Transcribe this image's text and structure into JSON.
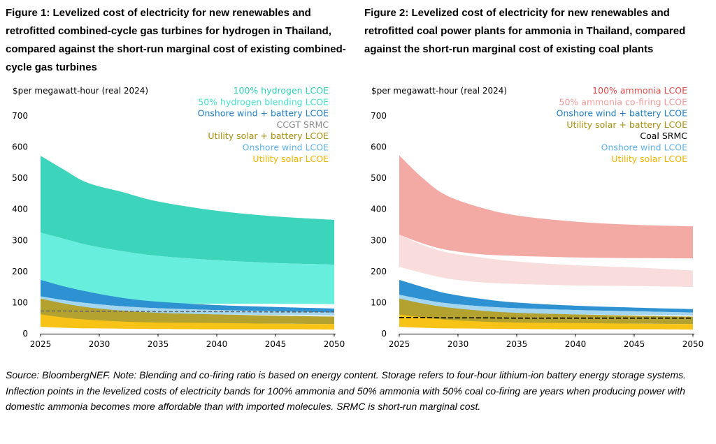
{
  "figure1": {
    "title": "Figure 1:  Levelized cost of electricity for new renewables and retrofitted combined-cycle gas turbines for hydrogen in Thailand, compared against the short-run marginal cost of existing combined-cycle gas turbines"
  },
  "figure2": {
    "title": "Figure 2:  Levelized cost of electricity for new renewables and retrofitted coal power plants for ammonia in Thailand, compared against the short-run marginal cost of existing coal plants"
  },
  "source_note": "Source: BloombergNEF. Note: Blending and co-firing ratio is based on energy content. Storage refers to four-hour lithium-ion battery energy storage systems. Inflection points in the levelized costs of electricity bands for 100% ammonia and 50% ammonia with 50% coal co-firing are years when producing power with domestic ammonia becomes more affordable than with imported molecules. SRMC is short-run marginal cost.",
  "chart_data": [
    {
      "type": "area",
      "ylabel": "$per megawatt-hour (real 2024)",
      "ylim": [
        0,
        700
      ],
      "xlim": [
        2025,
        2050
      ],
      "yticks": [
        0,
        100,
        200,
        300,
        400,
        500,
        600,
        700
      ],
      "xticks": [
        2025,
        2030,
        2035,
        2040,
        2045,
        2050
      ],
      "grid": false,
      "legend_position": "top-right",
      "x": [
        2025,
        2027,
        2029,
        2032,
        2035,
        2040,
        2045,
        2050
      ],
      "bands": [
        {
          "name": "100% hydrogen LCOE",
          "color": "#3dd4bc",
          "opacity": 1,
          "low": [
            325,
            305,
            285,
            265,
            250,
            236,
            227,
            222
          ],
          "high": [
            572,
            527,
            485,
            455,
            425,
            395,
            377,
            366
          ]
        },
        {
          "name": "50% hydrogen blending LCOE",
          "color": "#67eedd",
          "opacity": 1,
          "low": [
            110,
            105,
            100,
            98,
            97,
            96,
            96,
            95
          ],
          "high": [
            325,
            305,
            285,
            265,
            250,
            236,
            227,
            222
          ]
        },
        {
          "name": "Onshore wind + battery LCOE",
          "color": "#2e92d2",
          "opacity": 1,
          "low": [
            120,
            108,
            98,
            88,
            82,
            76,
            72,
            68
          ],
          "high": [
            173,
            152,
            135,
            115,
            103,
            92,
            86,
            81
          ]
        },
        {
          "name": "Onshore wind LCOE",
          "color": "#a4d6f0",
          "opacity": 1,
          "low": [
            88,
            80,
            74,
            68,
            65,
            62,
            60,
            58
          ],
          "high": [
            120,
            108,
            98,
            88,
            82,
            76,
            72,
            68
          ]
        },
        {
          "name": "Utility solar + battery LCOE",
          "color": "#b3a230",
          "opacity": 1,
          "low": [
            45,
            40,
            37,
            35,
            34,
            33,
            32,
            31
          ],
          "high": [
            113,
            97,
            85,
            74,
            67,
            62,
            58,
            55
          ]
        },
        {
          "name": "Utility solar LCOE",
          "color": "#f6c316",
          "opacity": 1,
          "low": [
            22,
            19,
            17,
            16,
            15,
            14,
            14,
            13
          ],
          "high": [
            62,
            52,
            45,
            39,
            36,
            34,
            32,
            31
          ]
        }
      ],
      "lines": [
        {
          "name": "CCGT SRMC",
          "color": "#666666",
          "dash": "5,3",
          "values": [
            73,
            73,
            72,
            72,
            71,
            71,
            70,
            70
          ]
        }
      ],
      "legend": [
        {
          "label": "100% hydrogen LCOE",
          "color": "#2fcfb6"
        },
        {
          "label": "50% hydrogen blending LCOE",
          "color": "#45e1cc"
        },
        {
          "label": "Onshore wind + battery LCOE",
          "color": "#2280c4"
        },
        {
          "label": "CCGT SRMC",
          "color": "#8a8a8a"
        },
        {
          "label": "Utility solar + battery LCOE",
          "color": "#a68f12"
        },
        {
          "label": "Onshore wind LCOE",
          "color": "#62b2e4"
        },
        {
          "label": "Utility solar LCOE",
          "color": "#f0b400"
        }
      ]
    },
    {
      "type": "area",
      "ylabel": "$per megawatt-hour (real 2024)",
      "ylim": [
        0,
        700
      ],
      "xlim": [
        2025,
        2050
      ],
      "yticks": [
        0,
        100,
        200,
        300,
        400,
        500,
        600,
        700
      ],
      "xticks": [
        2025,
        2030,
        2035,
        2040,
        2045,
        2050
      ],
      "grid": false,
      "legend_position": "top-right",
      "x": [
        2025,
        2027,
        2029,
        2032,
        2035,
        2040,
        2045,
        2050
      ],
      "bands": [
        {
          "name": "100% ammonia LCOE",
          "color": "#f3aaa4",
          "opacity": 1,
          "low": [
            318,
            290,
            270,
            255,
            250,
            245,
            243,
            242
          ],
          "high": [
            573,
            500,
            445,
            405,
            380,
            360,
            350,
            345
          ]
        },
        {
          "name": "50% ammonia co-firing LCOE",
          "color": "#f9dcdc",
          "opacity": 1,
          "low": [
            215,
            195,
            178,
            165,
            160,
            155,
            153,
            150
          ],
          "high": [
            318,
            285,
            262,
            245,
            232,
            220,
            213,
            203
          ]
        },
        {
          "name": "Onshore wind + battery LCOE",
          "color": "#2e92d2",
          "opacity": 1,
          "low": [
            125,
            110,
            98,
            88,
            82,
            76,
            72,
            68
          ],
          "high": [
            173,
            150,
            130,
            112,
            100,
            90,
            84,
            79
          ]
        },
        {
          "name": "Onshore wind LCOE",
          "color": "#a4d6f0",
          "opacity": 1,
          "low": [
            88,
            80,
            74,
            68,
            65,
            62,
            60,
            58
          ],
          "high": [
            125,
            110,
            98,
            88,
            82,
            76,
            72,
            68
          ]
        },
        {
          "name": "Utility solar + battery LCOE",
          "color": "#b3a230",
          "opacity": 1,
          "low": [
            45,
            40,
            37,
            35,
            34,
            33,
            32,
            31
          ],
          "high": [
            113,
            97,
            85,
            74,
            67,
            62,
            58,
            55
          ]
        },
        {
          "name": "Utility solar LCOE",
          "color": "#f6c316",
          "opacity": 1,
          "low": [
            22,
            19,
            17,
            16,
            15,
            14,
            14,
            13
          ],
          "high": [
            62,
            52,
            45,
            39,
            36,
            34,
            32,
            31
          ]
        }
      ],
      "lines": [
        {
          "name": "Coal SRMC",
          "color": "#000000",
          "dash": "7,3",
          "values": [
            52,
            52,
            51,
            51,
            50,
            50,
            50,
            50
          ]
        }
      ],
      "legend": [
        {
          "label": "100% ammonia LCOE",
          "color": "#de4a4a"
        },
        {
          "label": "50% ammonia co-firing LCOE",
          "color": "#ef9a9a"
        },
        {
          "label": "Onshore wind + battery LCOE",
          "color": "#2280c4"
        },
        {
          "label": "Utility solar + battery LCOE",
          "color": "#a68f12"
        },
        {
          "label": "Coal SRMC",
          "color": "#000000"
        },
        {
          "label": "Onshore wind LCOE",
          "color": "#62b2e4"
        },
        {
          "label": "Utility solar LCOE",
          "color": "#f0b400"
        }
      ]
    }
  ]
}
